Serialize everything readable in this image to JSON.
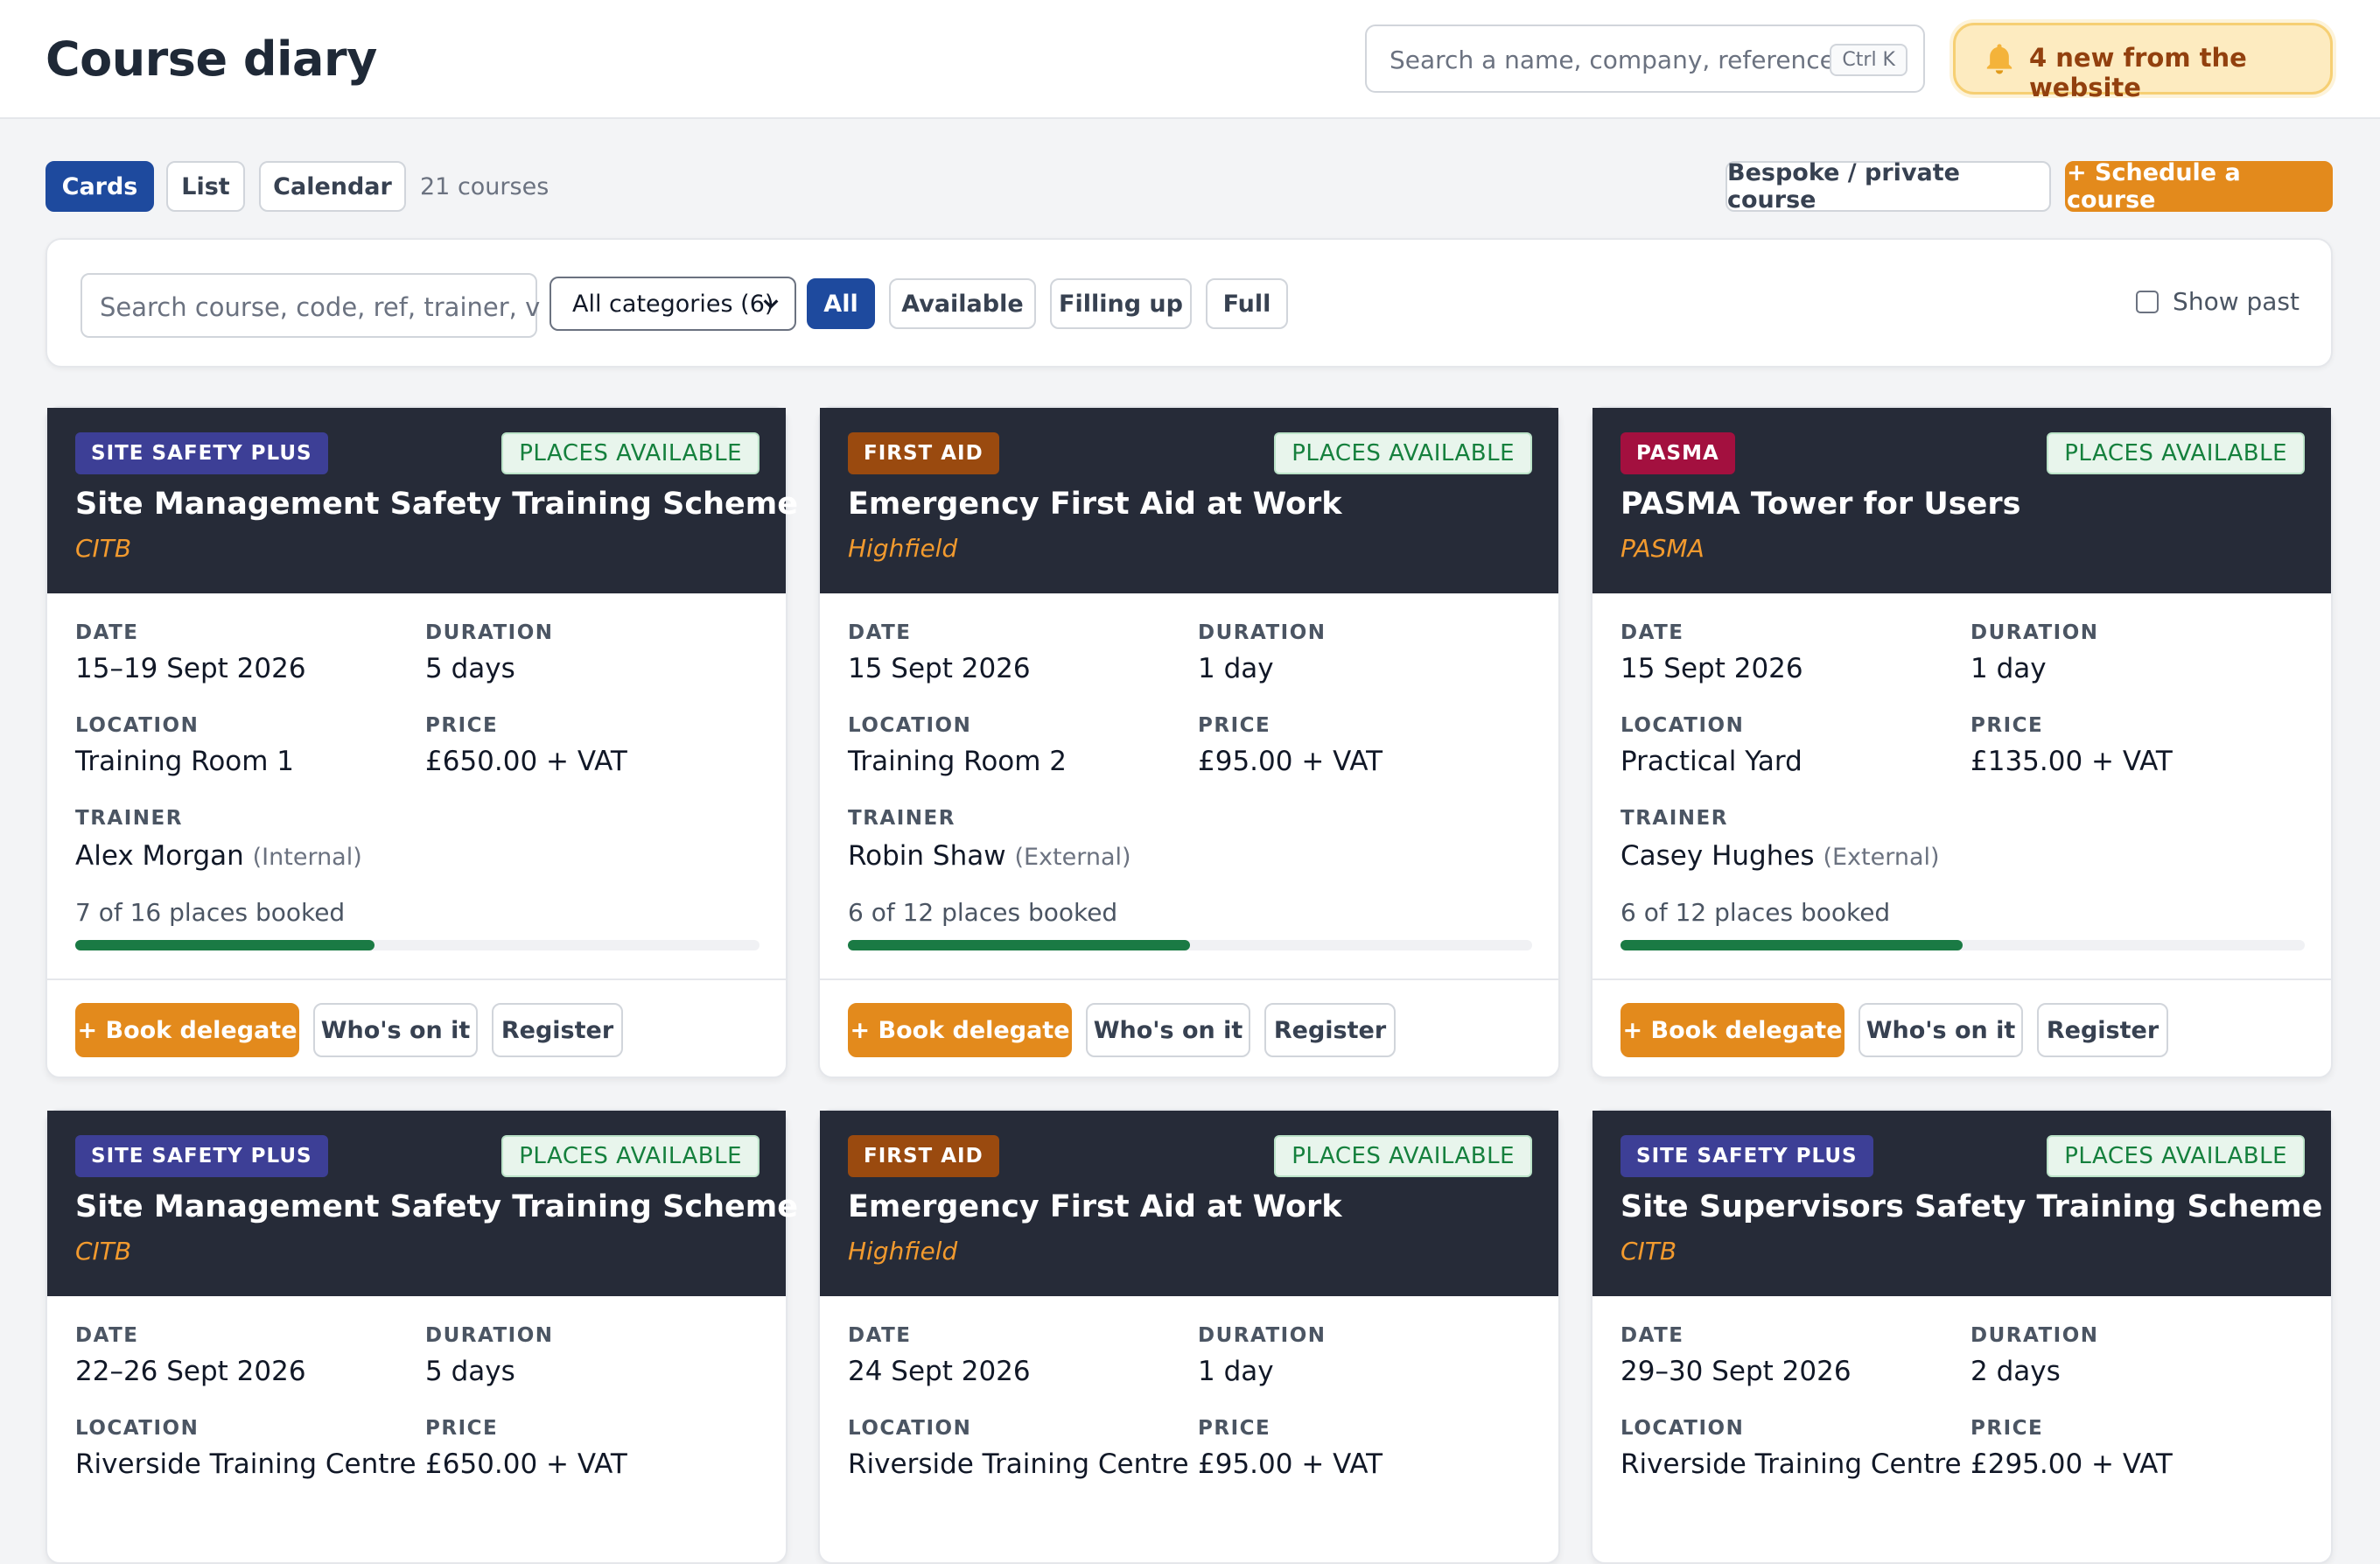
{
  "header": {
    "title": "Course diary",
    "search_placeholder": "Search a name, company, reference...",
    "search_shortcut": "Ctrl K",
    "notification_text": "4 new from the website"
  },
  "toolbar": {
    "views": [
      "Cards",
      "List",
      "Calendar"
    ],
    "active_view": "Cards",
    "count_label": "21 courses",
    "bespoke_label": "Bespoke / private course",
    "schedule_label": "+ Schedule a course"
  },
  "filters": {
    "search_placeholder": "Search course, code, ref, trainer, v",
    "category_value": "All categories (6)",
    "pills": [
      "All",
      "Available",
      "Filling up",
      "Full"
    ],
    "active_pill": "All",
    "show_past_label": "Show past",
    "show_past_checked": false
  },
  "labels": {
    "date": "DATE",
    "duration": "DURATION",
    "location": "LOCATION",
    "price": "PRICE",
    "trainer": "TRAINER",
    "book": "+ Book delegate",
    "whos_on": "Who's on it",
    "register": "Register"
  },
  "colors": {
    "site_safety_plus": "#3d3f96",
    "first_aid": "#9a4a0f",
    "pasma": "#a3103f",
    "accent_orange": "#e38a1c",
    "primary_blue": "#1e4a9e",
    "progress_green": "#1a7a44"
  },
  "cards": [
    {
      "category": "SITE SAFETY PLUS",
      "category_key": "site_safety_plus",
      "status": "PLACES AVAILABLE",
      "title": "Site Management Safety Training Scheme",
      "provider": "CITB",
      "date": "15–19 Sept 2026",
      "duration": "5 days",
      "location": "Training Room 1",
      "price": "£650.00 + VAT",
      "trainer": "Alex Morgan",
      "trainer_type": "(Internal)",
      "booked_text": "7 of 16 places booked",
      "booked": 7,
      "capacity": 16
    },
    {
      "category": "FIRST AID",
      "category_key": "first_aid",
      "status": "PLACES AVAILABLE",
      "title": "Emergency First Aid at Work",
      "provider": "Highfield",
      "date": "15 Sept 2026",
      "duration": "1 day",
      "location": "Training Room 2",
      "price": "£95.00 + VAT",
      "trainer": "Robin Shaw",
      "trainer_type": "(External)",
      "booked_text": "6 of 12 places booked",
      "booked": 6,
      "capacity": 12
    },
    {
      "category": "PASMA",
      "category_key": "pasma",
      "status": "PLACES AVAILABLE",
      "title": "PASMA Tower for Users",
      "provider": "PASMA",
      "date": "15 Sept 2026",
      "duration": "1 day",
      "location": "Practical Yard",
      "price": "£135.00 + VAT",
      "trainer": "Casey Hughes",
      "trainer_type": "(External)",
      "booked_text": "6 of 12 places booked",
      "booked": 6,
      "capacity": 12
    },
    {
      "category": "SITE SAFETY PLUS",
      "category_key": "site_safety_plus",
      "status": "PLACES AVAILABLE",
      "title": "Site Management Safety Training Scheme",
      "provider": "CITB",
      "date": "22–26 Sept 2026",
      "duration": "5 days",
      "location": "Riverside Training Centre",
      "price": "£650.00 + VAT"
    },
    {
      "category": "FIRST AID",
      "category_key": "first_aid",
      "status": "PLACES AVAILABLE",
      "title": "Emergency First Aid at Work",
      "provider": "Highfield",
      "date": "24 Sept 2026",
      "duration": "1 day",
      "location": "Riverside Training Centre",
      "price": "£95.00 + VAT"
    },
    {
      "category": "SITE SAFETY PLUS",
      "category_key": "site_safety_plus",
      "status": "PLACES AVAILABLE",
      "title": "Site Supervisors Safety Training Scheme",
      "provider": "CITB",
      "date": "29–30 Sept 2026",
      "duration": "2 days",
      "location": "Riverside Training Centre",
      "price": "£295.00 + VAT"
    }
  ]
}
